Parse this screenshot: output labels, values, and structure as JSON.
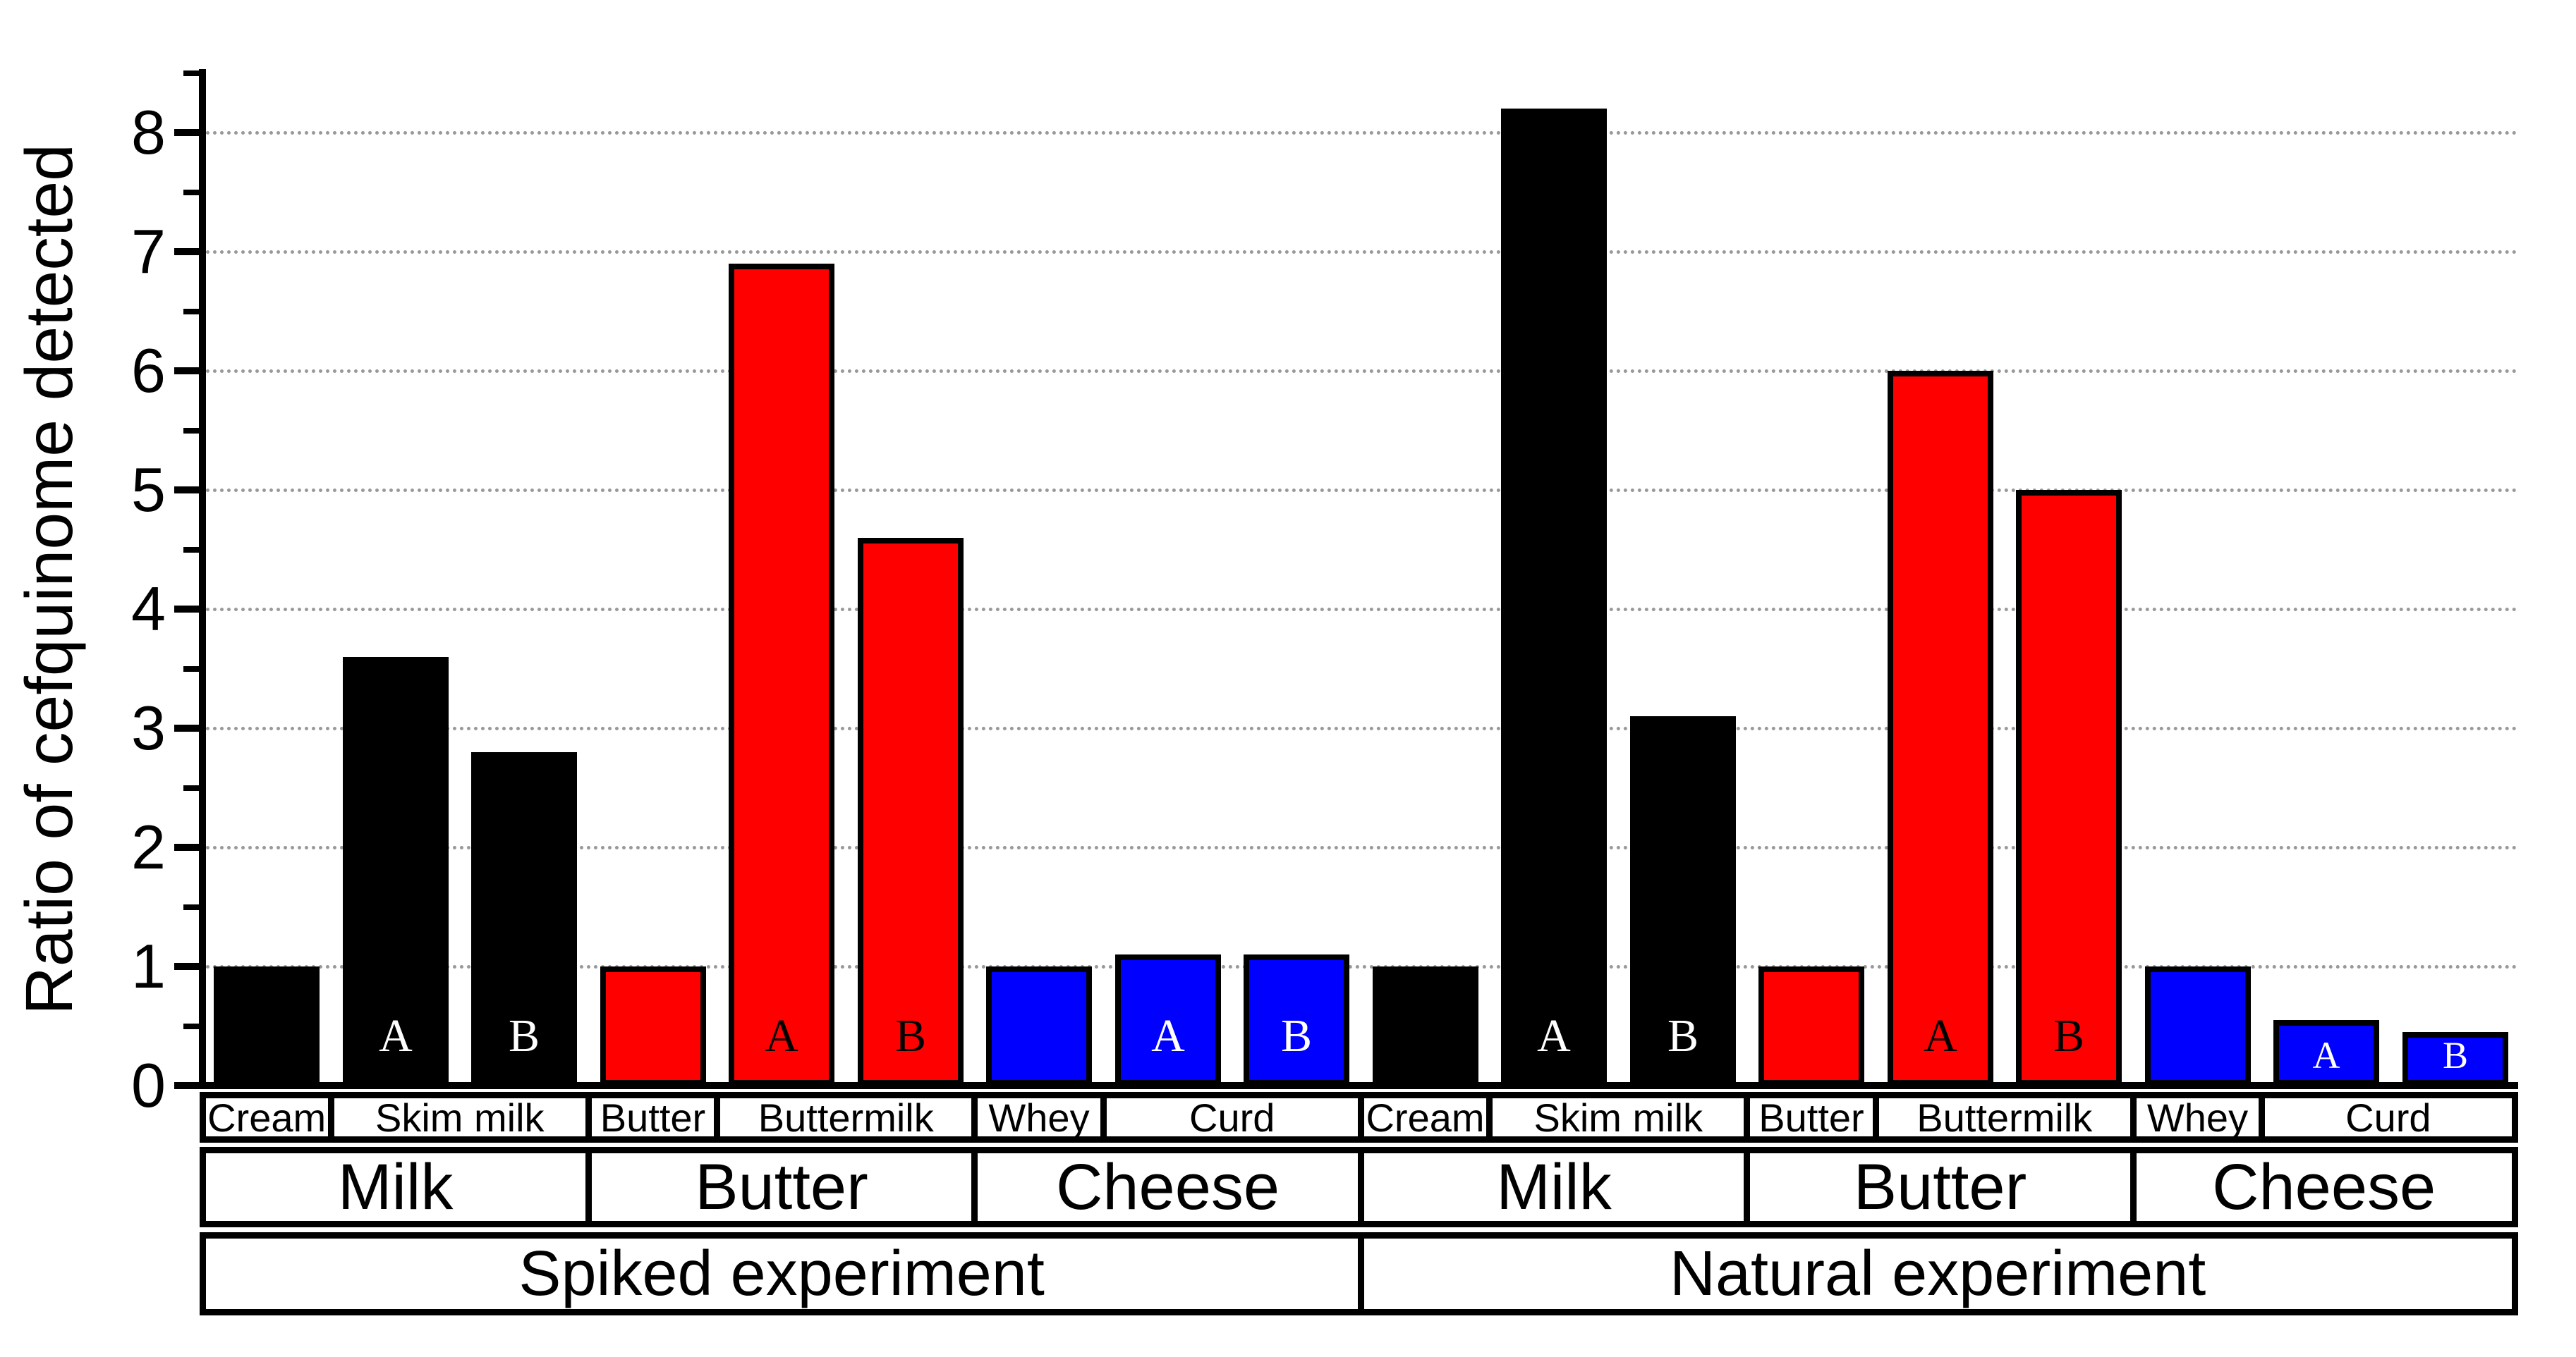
{
  "y_axis": {
    "label": "Ratio of cefquinome detected",
    "tick_labels": [
      "0",
      "1",
      "2",
      "3",
      "4",
      "5",
      "6",
      "7",
      "8"
    ]
  },
  "chart_data": {
    "type": "bar",
    "title": "",
    "xlabel": "",
    "ylabel": "Ratio of cefquinome detected",
    "ylim": [
      0,
      8.5
    ],
    "yticks": [
      0,
      1,
      2,
      3,
      4,
      5,
      6,
      7,
      8
    ],
    "grid": {
      "horizontal_dotted_at": [
        1,
        2,
        3,
        4,
        5,
        6,
        7,
        8
      ]
    },
    "legend": "none",
    "bar_colors": {
      "milk_fraction": "#000000",
      "butter_fraction": "#ff0000",
      "cheese_fraction": "#0000ff"
    },
    "bars": [
      {
        "experiment": "Spiked experiment",
        "category": "Milk",
        "product": "Cream",
        "replicate": "",
        "value": 1.0,
        "color": "#000000",
        "letter": "",
        "letter_color": "#ffffff"
      },
      {
        "experiment": "Spiked experiment",
        "category": "Milk",
        "product": "Skim milk",
        "replicate": "A",
        "value": 3.6,
        "color": "#000000",
        "letter": "A",
        "letter_color": "#ffffff"
      },
      {
        "experiment": "Spiked experiment",
        "category": "Milk",
        "product": "Skim milk",
        "replicate": "B",
        "value": 2.8,
        "color": "#000000",
        "letter": "B",
        "letter_color": "#ffffff"
      },
      {
        "experiment": "Spiked experiment",
        "category": "Butter",
        "product": "Butter",
        "replicate": "",
        "value": 1.0,
        "color": "#ff0000",
        "letter": "",
        "letter_color": "#000000"
      },
      {
        "experiment": "Spiked experiment",
        "category": "Butter",
        "product": "Buttermilk",
        "replicate": "A",
        "value": 6.9,
        "color": "#ff0000",
        "letter": "A",
        "letter_color": "#000000"
      },
      {
        "experiment": "Spiked experiment",
        "category": "Butter",
        "product": "Buttermilk",
        "replicate": "B",
        "value": 4.6,
        "color": "#ff0000",
        "letter": "B",
        "letter_color": "#000000"
      },
      {
        "experiment": "Spiked experiment",
        "category": "Cheese",
        "product": "Whey",
        "replicate": "",
        "value": 1.0,
        "color": "#0000ff",
        "letter": "",
        "letter_color": "#ffffff"
      },
      {
        "experiment": "Spiked experiment",
        "category": "Cheese",
        "product": "Curd",
        "replicate": "A",
        "value": 1.1,
        "color": "#0000ff",
        "letter": "A",
        "letter_color": "#ffffff"
      },
      {
        "experiment": "Spiked experiment",
        "category": "Cheese",
        "product": "Curd",
        "replicate": "B",
        "value": 1.1,
        "color": "#0000ff",
        "letter": "B",
        "letter_color": "#ffffff"
      },
      {
        "experiment": "Natural experiment",
        "category": "Milk",
        "product": "Cream",
        "replicate": "",
        "value": 1.0,
        "color": "#000000",
        "letter": "",
        "letter_color": "#ffffff"
      },
      {
        "experiment": "Natural experiment",
        "category": "Milk",
        "product": "Skim milk",
        "replicate": "A",
        "value": 8.2,
        "color": "#000000",
        "letter": "A",
        "letter_color": "#ffffff"
      },
      {
        "experiment": "Natural experiment",
        "category": "Milk",
        "product": "Skim milk",
        "replicate": "B",
        "value": 3.1,
        "color": "#000000",
        "letter": "B",
        "letter_color": "#ffffff"
      },
      {
        "experiment": "Natural experiment",
        "category": "Butter",
        "product": "Butter",
        "replicate": "",
        "value": 1.0,
        "color": "#ff0000",
        "letter": "",
        "letter_color": "#000000"
      },
      {
        "experiment": "Natural experiment",
        "category": "Butter",
        "product": "Buttermilk",
        "replicate": "A",
        "value": 6.0,
        "color": "#ff0000",
        "letter": "A",
        "letter_color": "#000000"
      },
      {
        "experiment": "Natural experiment",
        "category": "Butter",
        "product": "Buttermilk",
        "replicate": "B",
        "value": 5.0,
        "color": "#ff0000",
        "letter": "B",
        "letter_color": "#000000"
      },
      {
        "experiment": "Natural experiment",
        "category": "Cheese",
        "product": "Whey",
        "replicate": "",
        "value": 1.0,
        "color": "#0000ff",
        "letter": "",
        "letter_color": "#ffffff"
      },
      {
        "experiment": "Natural experiment",
        "category": "Cheese",
        "product": "Curd",
        "replicate": "A",
        "value": 0.55,
        "color": "#0000ff",
        "letter": "A",
        "letter_color": "#ffffff"
      },
      {
        "experiment": "Natural experiment",
        "category": "Cheese",
        "product": "Curd",
        "replicate": "B",
        "value": 0.45,
        "color": "#0000ff",
        "letter": "B",
        "letter_color": "#ffffff"
      }
    ],
    "x_table": {
      "product_row": [
        {
          "label": "Cream",
          "span": 1
        },
        {
          "label": "Skim milk",
          "span": 2
        },
        {
          "label": "Butter",
          "span": 1
        },
        {
          "label": "Buttermilk",
          "span": 2
        },
        {
          "label": "Whey",
          "span": 1
        },
        {
          "label": "Curd",
          "span": 2
        },
        {
          "label": "Cream",
          "span": 1
        },
        {
          "label": "Skim milk",
          "span": 2
        },
        {
          "label": "Butter",
          "span": 1
        },
        {
          "label": "Buttermilk",
          "span": 2
        },
        {
          "label": "Whey",
          "span": 1
        },
        {
          "label": "Curd",
          "span": 2
        }
      ],
      "category_row": [
        {
          "label": "Milk",
          "span": 3
        },
        {
          "label": "Butter",
          "span": 3
        },
        {
          "label": "Cheese",
          "span": 3
        },
        {
          "label": "Milk",
          "span": 3
        },
        {
          "label": "Butter",
          "span": 3
        },
        {
          "label": "Cheese",
          "span": 3
        }
      ],
      "experiment_row": [
        {
          "label": "Spiked experiment",
          "span": 9
        },
        {
          "label": "Natural experiment",
          "span": 9
        }
      ]
    }
  }
}
